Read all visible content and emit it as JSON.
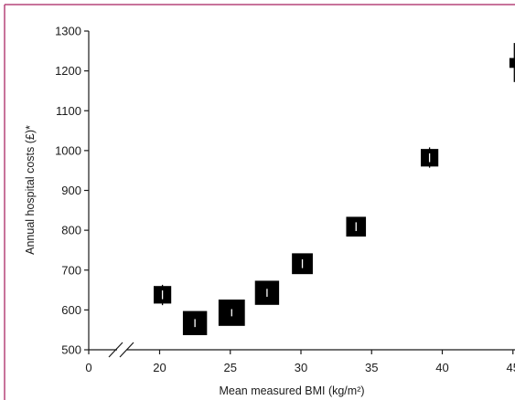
{
  "colors": {
    "frame": "#b5457a",
    "ink": "#000000",
    "axis": "#1a1a1a"
  },
  "chart_data": {
    "type": "scatter",
    "title": "",
    "xlabel": "Mean measured BMI (kg/m²)",
    "ylabel": "Annual hospital costs (£)*",
    "xlim": [
      0,
      45
    ],
    "ylim": [
      500,
      1300
    ],
    "x_axis_break": true,
    "grid": false,
    "x_ticks": [
      0,
      20,
      25,
      30,
      35,
      40,
      45
    ],
    "y_ticks": [
      500,
      600,
      700,
      800,
      900,
      1000,
      1100,
      1200,
      1300
    ],
    "points": [
      {
        "x": 20.2,
        "y": 638,
        "ci": [
          612,
          663
        ],
        "weight": 0.55
      },
      {
        "x": 22.5,
        "y": 567,
        "ci": [
          558,
          578
        ],
        "weight": 0.85
      },
      {
        "x": 25.1,
        "y": 593,
        "ci": [
          585,
          603
        ],
        "weight": 0.95
      },
      {
        "x": 27.6,
        "y": 643,
        "ci": [
          634,
          654
        ],
        "weight": 0.85
      },
      {
        "x": 30.1,
        "y": 716,
        "ci": [
          706,
          728
        ],
        "weight": 0.7
      },
      {
        "x": 33.9,
        "y": 809,
        "ci": [
          799,
          821
        ],
        "weight": 0.65
      },
      {
        "x": 39.1,
        "y": 982,
        "ci": [
          957,
          1008
        ],
        "weight": 0.55
      },
      {
        "x": 45.1,
        "y": 1220,
        "ci": [
          1172,
          1270
        ],
        "weight": 0.2
      }
    ]
  }
}
